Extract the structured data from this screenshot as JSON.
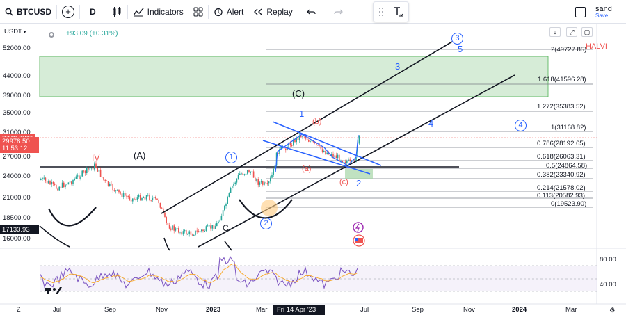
{
  "toolbar": {
    "symbol": "BTCUSD",
    "add_symbol": "+",
    "interval": "D",
    "indicators_label": "Indicators",
    "alert_label": "Alert",
    "replay_label": "Replay"
  },
  "user": {
    "name": "sand",
    "status": "Save"
  },
  "chart": {
    "currency": "USDT",
    "change_text": "+93.09 (+0.31%)",
    "symbol_tag": "BTCUSDT",
    "last_price": "29978.50",
    "countdown": "11:53:12",
    "low_tag": "17133.93",
    "top_right_text": "HALVI"
  },
  "y_ticks": [
    "52000.00",
    "44000.00",
    "39000.00",
    "35000.00",
    "31000.00",
    "27000.00",
    "24000.00",
    "21000.00",
    "18500.00",
    "16000.00"
  ],
  "rsi_ticks": [
    "80.00",
    "40.00"
  ],
  "x_ticks": [
    "Jul",
    "Sep",
    "Nov",
    "2023",
    "Mar",
    "Jul",
    "Sep",
    "Nov",
    "2024",
    "Mar"
  ],
  "crosshair_date": "Fri 14 Apr '23",
  "fib_levels": [
    "2(49727.85)",
    "1.618(41596.28)",
    "1.272(35383.52)",
    "1(31168.82)",
    "0.786(28192.65)",
    "0.618(26063.31)",
    "0.5(24864.58)",
    "0.382(23340.92)",
    "0.214(21578.02)",
    "0.113(20582.93)",
    "0(19523.90)"
  ],
  "wave_labels": {
    "iv": "IV",
    "a_big": "(A)",
    "c_big": "(C)",
    "b_small": "(b)",
    "a_small": "(a)",
    "c_small": "(c)",
    "one": "1",
    "two": "2",
    "three": "3",
    "four": "4",
    "five": "5",
    "circle_one": "1",
    "circle_two": "2",
    "circle_three": "3",
    "circle_four": "4",
    "c_plain": "C"
  },
  "colors": {
    "up": "#26a69a",
    "down": "#ef5350",
    "wave_blue": "#2962ff",
    "fib_zone": "#c8e6c9",
    "rsi_line": "#7e57c2",
    "price_tag": "#ef5350"
  }
}
